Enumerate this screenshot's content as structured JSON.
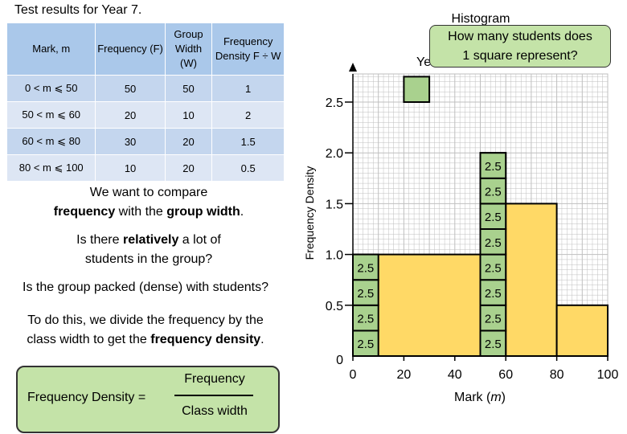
{
  "slide_title": "Test results for Year 7.",
  "table": {
    "headers": [
      "Mark, m",
      "Frequency (F)",
      "Group Width (W)",
      "Frequency Density F ÷ W"
    ],
    "rows": [
      [
        "0 < m ⩽ 50",
        "50",
        "50",
        "1"
      ],
      [
        "50 < m ⩽ 60",
        "20",
        "10",
        "2"
      ],
      [
        "60 < m ⩽ 80",
        "30",
        "20",
        "1.5"
      ],
      [
        "80 < m ⩽ 100",
        "10",
        "20",
        "0.5"
      ]
    ]
  },
  "text": {
    "compare_line1": "We want to compare",
    "compare_bold1": "frequency",
    "compare_mid": " with the ",
    "compare_bold2": "group width",
    "compare_end": ".",
    "q1_pre": "Is there ",
    "q1_bold": "relatively",
    "q1_post": " a lot of",
    "q1_line2": "students in the group?",
    "q2": "Is the group packed (dense) with students?",
    "method_line1": "To do this, we divide the frequency by the",
    "method_pre": "class width to get the ",
    "method_bold": "frequency density",
    "method_end": "."
  },
  "formula": {
    "label": "Frequency Density =",
    "numerator": "Frequency",
    "denominator": "Class width"
  },
  "callout": {
    "line1": "How many students does",
    "line2": "1 square represent?"
  },
  "chart_data": {
    "type": "bar",
    "title_fragments": [
      "Histogram",
      "Ye"
    ],
    "xlabel_text": "Mark (",
    "xlabel_var": "m",
    "xlabel_end": ")",
    "ylabel": "Frequency Density",
    "xlim": [
      0,
      100
    ],
    "ylim": [
      0,
      2.5
    ],
    "x_ticks": [
      0,
      20,
      40,
      60,
      80,
      100
    ],
    "y_ticks": [
      {
        "value": 0,
        "label": "0"
      },
      {
        "value": 0.5,
        "label": "0.5"
      },
      {
        "value": 1.0,
        "label": "1.0"
      },
      {
        "value": 1.5,
        "label": "1.5"
      },
      {
        "value": 2.0,
        "label": "2.0"
      },
      {
        "value": 2.5,
        "label": "2.5"
      }
    ],
    "grid": true,
    "bars": [
      {
        "x0": 0,
        "x1": 50,
        "value": 1
      },
      {
        "x0": 50,
        "x1": 60,
        "value": 2
      },
      {
        "x0": 60,
        "x1": 80,
        "value": 1.5
      },
      {
        "x0": 80,
        "x1": 100,
        "value": 0.5
      }
    ],
    "square_label": "2.5",
    "square_columns": [
      {
        "x0": 0,
        "x1": 10,
        "top": 1
      },
      {
        "x0": 50,
        "x1": 60,
        "top": 2
      }
    ],
    "highlight_square": {
      "x0": 20,
      "x1": 30,
      "y0": 2.5,
      "y1": 2.75
    },
    "colors": {
      "bar": "#ffd966",
      "square": "#a9d18e",
      "grid": "#bfbfbf"
    }
  }
}
